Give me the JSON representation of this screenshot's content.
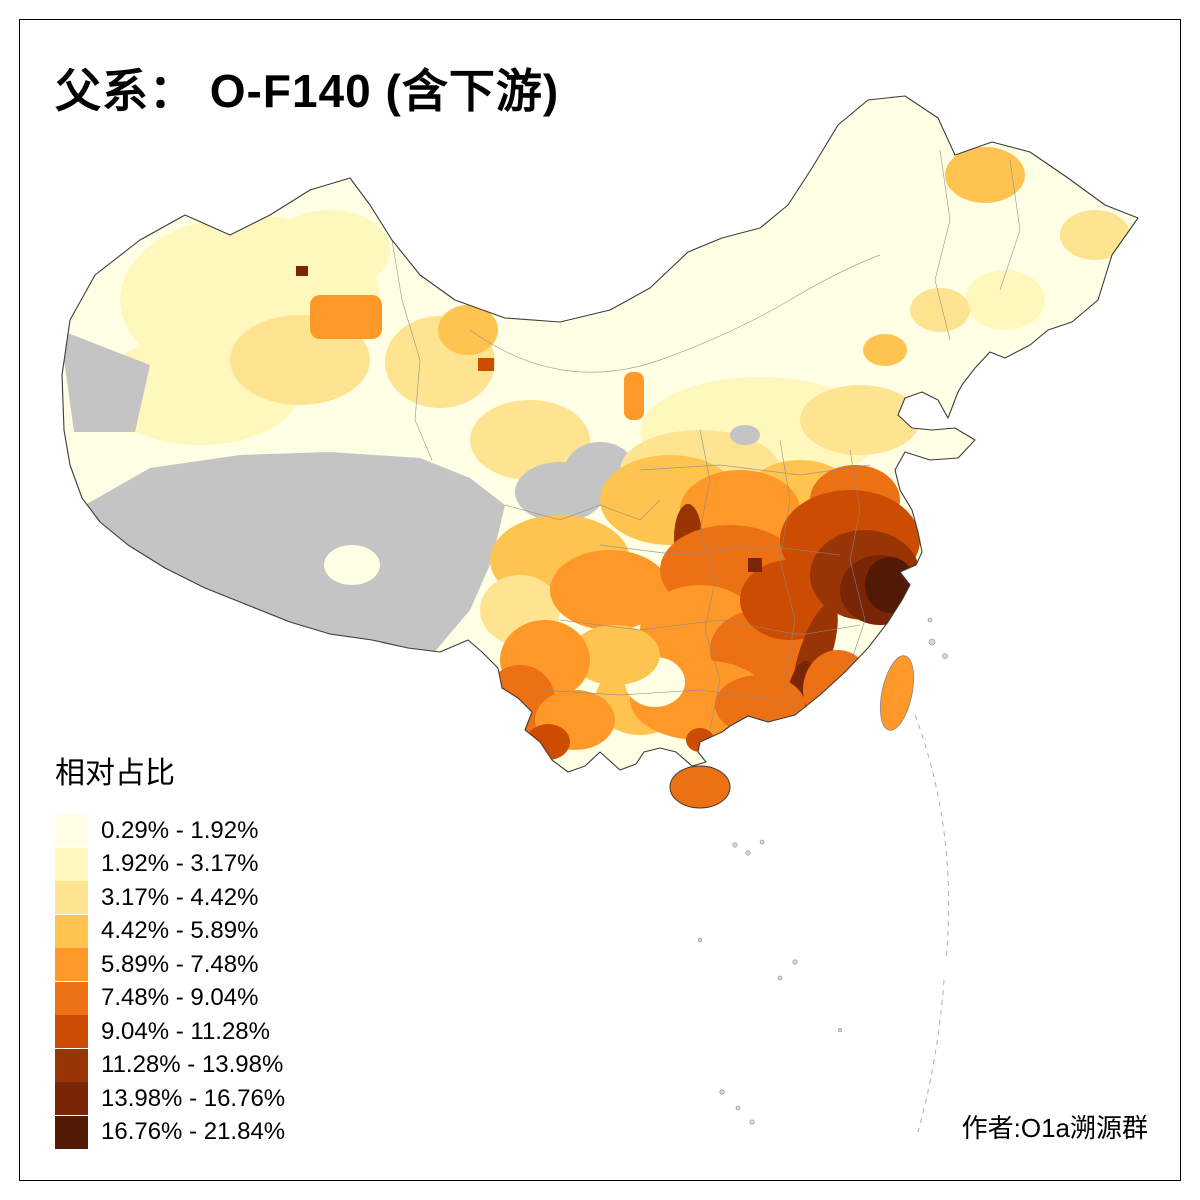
{
  "title": "父系： O-F140 (含下游)",
  "legend": {
    "title": "相对占比",
    "items": [
      {
        "label": "0.29% - 1.92%",
        "color": "#FFFFE5"
      },
      {
        "label": "1.92% - 3.17%",
        "color": "#FFF7BC"
      },
      {
        "label": "3.17% - 4.42%",
        "color": "#FEE391"
      },
      {
        "label": "4.42% - 5.89%",
        "color": "#FEC44F"
      },
      {
        "label": "5.89% - 7.48%",
        "color": "#FE9929"
      },
      {
        "label": "7.48% - 9.04%",
        "color": "#EC7014"
      },
      {
        "label": "9.04% - 11.28%",
        "color": "#CC4C02"
      },
      {
        "label": "11.28% - 13.98%",
        "color": "#993404"
      },
      {
        "label": "13.98% - 16.76%",
        "color": "#7A2505"
      },
      {
        "label": "16.76% - 21.84%",
        "color": "#521A04"
      }
    ]
  },
  "credit": "作者:O1a溯源群",
  "map": {
    "no_data_color": "#C4C4C4",
    "outline_color": "#3C3C3C"
  },
  "chart_data": {
    "type": "choropleth",
    "title": "父系： O-F140 (含下游)",
    "legend_title": "相对占比",
    "unit": "%",
    "classes": [
      {
        "range": "0.29% - 1.92%",
        "min": 0.29,
        "max": 1.92,
        "color": "#FFFFE5"
      },
      {
        "range": "1.92% - 3.17%",
        "min": 1.92,
        "max": 3.17,
        "color": "#FFF7BC"
      },
      {
        "range": "3.17% - 4.42%",
        "min": 3.17,
        "max": 4.42,
        "color": "#FEE391"
      },
      {
        "range": "4.42% - 5.89%",
        "min": 4.42,
        "max": 5.89,
        "color": "#FEC44F"
      },
      {
        "range": "5.89% - 7.48%",
        "min": 5.89,
        "max": 7.48,
        "color": "#FE9929"
      },
      {
        "range": "7.48% - 9.04%",
        "min": 7.48,
        "max": 9.04,
        "color": "#EC7014"
      },
      {
        "range": "9.04% - 11.28%",
        "min": 9.04,
        "max": 11.28,
        "color": "#CC4C02"
      },
      {
        "range": "11.28% - 13.98%",
        "min": 11.28,
        "max": 13.98,
        "color": "#993404"
      },
      {
        "range": "13.98% - 16.76%",
        "min": 13.98,
        "max": 16.76,
        "color": "#7A2505"
      },
      {
        "range": "16.76% - 21.84%",
        "min": 16.76,
        "max": 21.84,
        "color": "#521A04"
      }
    ],
    "credit": "作者:O1a溯源群"
  }
}
